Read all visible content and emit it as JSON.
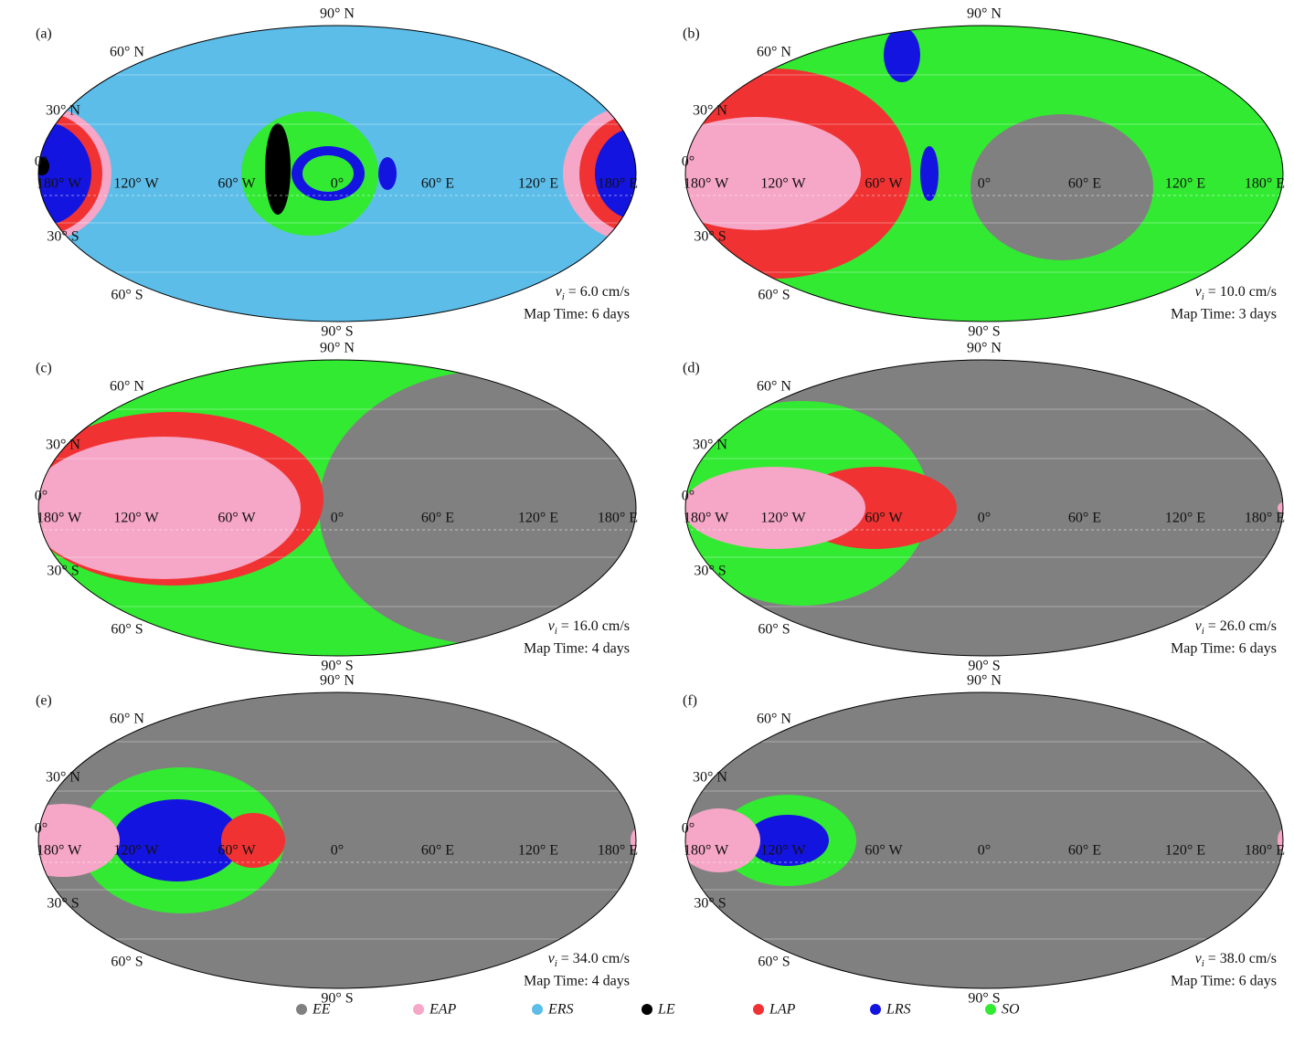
{
  "panels": [
    {
      "label": "(a)",
      "velocity": {
        "symbol": "v",
        "subscript": "i",
        "text": "= 6.0 cm/s"
      },
      "map_time": "Map Time: 6 days"
    },
    {
      "label": "(b)",
      "velocity": {
        "symbol": "v",
        "subscript": "i",
        "text": "= 10.0 cm/s"
      },
      "map_time": "Map Time: 3 days"
    },
    {
      "label": "(c)",
      "velocity": {
        "symbol": "v",
        "subscript": "i",
        "text": "= 16.0 cm/s"
      },
      "map_time": "Map Time: 4 days"
    },
    {
      "label": "(d)",
      "velocity": {
        "symbol": "v",
        "subscript": "i",
        "text": "= 26.0 cm/s"
      },
      "map_time": "Map Time: 6 days"
    },
    {
      "label": "(e)",
      "velocity": {
        "symbol": "v",
        "subscript": "i",
        "text": "= 34.0 cm/s"
      },
      "map_time": "Map Time: 4 days"
    },
    {
      "label": "(f)",
      "velocity": {
        "symbol": "v",
        "subscript": "i",
        "text": "= 38.0 cm/s"
      },
      "map_time": "Map Time: 6 days"
    }
  ],
  "graticule_labels": {
    "north_pole": "90° N",
    "lat_60n": "60° N",
    "lat_30n": "30° N",
    "lat_0": "0°",
    "lon_180w": "180° W",
    "lon_120w": "120° W",
    "lon_60w": "60° W",
    "lon_0": "0°",
    "lon_60e": "60° E",
    "lon_120e": "120° E",
    "lon_180e": "180° E",
    "lat_30s": "30° S",
    "lat_60s": "60° S",
    "south_pole": "90° S"
  },
  "legend": {
    "items": [
      {
        "name": "EE",
        "color": "#808080"
      },
      {
        "name": "EAP",
        "color": "#f6a6c6"
      },
      {
        "name": "ERS",
        "color": "#5cbde9"
      },
      {
        "name": "LE",
        "color": "#000000"
      },
      {
        "name": "LAP",
        "color": "#f03232"
      },
      {
        "name": "LRS",
        "color": "#1414e0"
      },
      {
        "name": "SO",
        "color": "#32ea32"
      }
    ]
  }
}
